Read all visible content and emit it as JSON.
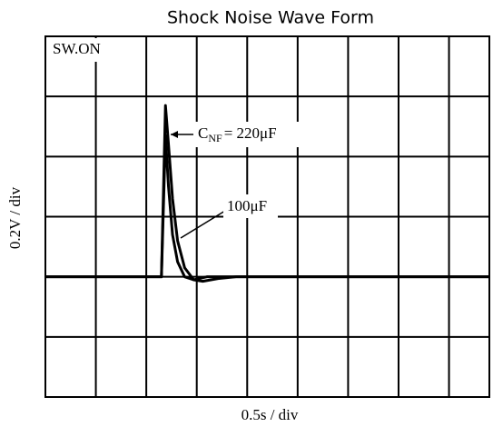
{
  "chart_data": {
    "type": "line",
    "title": "Shock Noise Wave Form",
    "x_label": "0.5s / div",
    "y_label": "0.2V / div",
    "xlim": [
      0,
      4.4
    ],
    "ylim": [
      -0.4,
      0.8
    ],
    "xticks": [
      0,
      0.5,
      1,
      1.5,
      2,
      2.5,
      3,
      3.5,
      4
    ],
    "yticks": [
      -0.4,
      -0.2,
      0,
      0.2,
      0.4,
      0.6,
      0.8
    ],
    "grid": true,
    "series": [
      {
        "color": "#000000",
        "x": [
          0,
          1.15,
          1.19,
          1.22,
          1.26,
          1.31,
          1.38,
          1.47,
          1.56,
          1.71,
          1.89,
          4.4
        ],
        "values": [
          0,
          0,
          0.57,
          0.44,
          0.26,
          0.12,
          0.03,
          -0.01,
          -0.015,
          -0.006,
          0,
          0
        ]
      },
      {
        "color": "#000000",
        "x": [
          0,
          1.15,
          1.19,
          1.22,
          1.26,
          1.31,
          1.38,
          1.47,
          1.6,
          4.4
        ],
        "values": [
          0,
          0,
          0.47,
          0.3,
          0.14,
          0.05,
          0,
          -0.01,
          0,
          0
        ]
      }
    ],
    "annotations": [
      {
        "text": "SW.ON"
      },
      {
        "text": "C",
        "subscript": "NF",
        "suffix": "= 220μF"
      },
      {
        "text": "100μF"
      }
    ]
  }
}
